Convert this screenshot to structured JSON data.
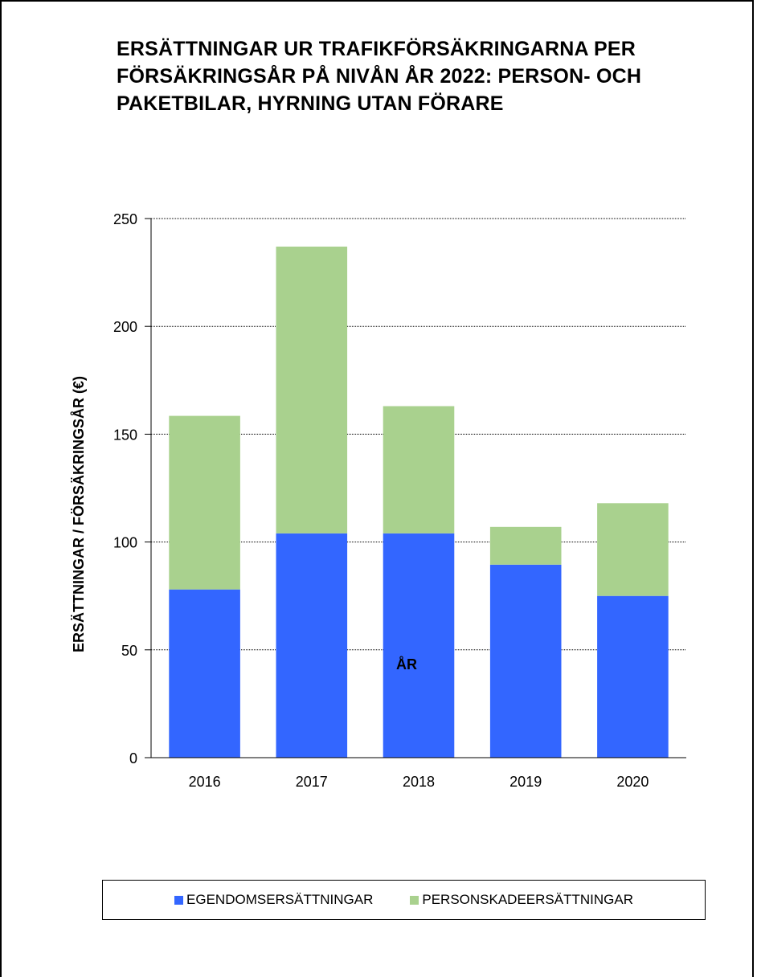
{
  "chart_data": {
    "type": "bar",
    "stacked": true,
    "title": "ERSÄTTNINGAR UR TRAFIKFÖRSÄKRINGARNA PER FÖRSÄKRINGSÅR PÅ NIVÅN ÅR 2022: PERSON- OCH PAKETBILAR, HYRNING UTAN FÖRARE",
    "xlabel": "ÅR",
    "ylabel": "ERSÄTTNINGAR / FÖRSÄKRINGSÅR (€)",
    "categories": [
      "2016",
      "2017",
      "2018",
      "2019",
      "2020"
    ],
    "series": [
      {
        "name": "EGENDOMSERSÄTTNINGAR",
        "color": "#3366ff",
        "values": [
          78,
          104,
          104,
          89.5,
          75
        ]
      },
      {
        "name": "PERSONSKADEERSÄTTNINGAR",
        "color": "#a9d18e",
        "values": [
          80.5,
          133,
          59,
          17.5,
          43
        ]
      }
    ],
    "ylim": [
      0,
      250
    ],
    "yticks": [
      "0",
      "50",
      "100",
      "150",
      "200",
      "250"
    ],
    "grid": true,
    "legend_position": "bottom"
  }
}
